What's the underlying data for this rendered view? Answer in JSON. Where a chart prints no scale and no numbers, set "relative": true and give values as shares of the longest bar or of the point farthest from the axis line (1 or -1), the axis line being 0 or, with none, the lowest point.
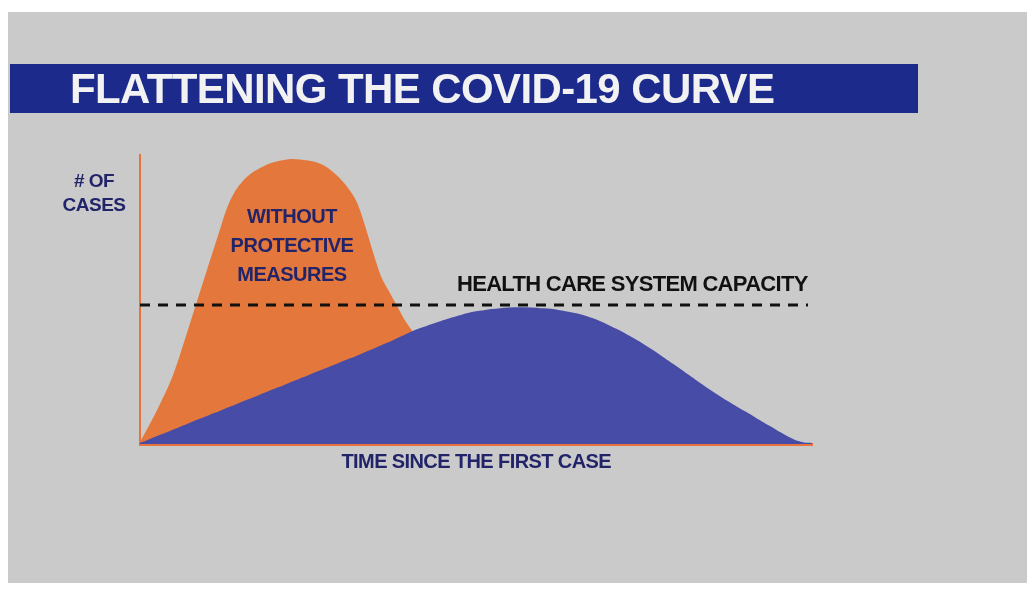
{
  "chart_data": {
    "type": "area",
    "title": "FLATTENING THE COVID-19 CURVE",
    "xlabel": "TIME SINCE THE FIRST CASE",
    "ylabel": "# OF CASES",
    "relative": true,
    "legend": false,
    "marker": "none",
    "categories": [
      null,
      null,
      null,
      null,
      null,
      null,
      null,
      null,
      null,
      null,
      null,
      null,
      null,
      null,
      null,
      null,
      null,
      null,
      null,
      null,
      null,
      null,
      null,
      null,
      null,
      null,
      null,
      null,
      null,
      null,
      null,
      null,
      null,
      null,
      null,
      null,
      null,
      null,
      null,
      null,
      null,
      null,
      null,
      null,
      null,
      null,
      null,
      null,
      null,
      null,
      null,
      null,
      null,
      null,
      null,
      null,
      null,
      null,
      null,
      null,
      null,
      null,
      null,
      null,
      null,
      null,
      null,
      null,
      null,
      null,
      null,
      null,
      null,
      null,
      null,
      null,
      null,
      null,
      null,
      null,
      null,
      null,
      null,
      null,
      null
    ],
    "series": [
      {
        "name": "WITHOUT PROTECTIVE MEASURES",
        "color": "#e4773b",
        "values": [
          0,
          0.051,
          0.104,
          0.162,
          0.224,
          0.303,
          0.391,
          0.48,
          0.569,
          0.657,
          0.745,
          0.831,
          0.889,
          0.926,
          0.951,
          0.968,
          0.982,
          0.991,
          0.997,
          1,
          0.999,
          0.995,
          0.989,
          0.977,
          0.956,
          0.93,
          0.896,
          0.85,
          0.769,
          0.675,
          0.59,
          0.537,
          0.486,
          0.434,
          0.394,
          null,
          null,
          null,
          null,
          null,
          null,
          null,
          null,
          null,
          null,
          null,
          null,
          null,
          null,
          null,
          null,
          null,
          null,
          null,
          null,
          null,
          null,
          null,
          null,
          null,
          null,
          null,
          null,
          null,
          null,
          null,
          null,
          null,
          null,
          null,
          null,
          null,
          null,
          null,
          null,
          null,
          null,
          null,
          null,
          null,
          null,
          null,
          null,
          null,
          null
        ]
      },
      {
        "color": "#474ca6",
        "values": [
          0,
          0.011,
          0.023,
          0.034,
          0.045,
          0.057,
          0.068,
          0.08,
          0.091,
          0.102,
          0.113,
          0.125,
          0.136,
          0.148,
          0.159,
          0.17,
          0.182,
          0.193,
          0.204,
          0.216,
          0.227,
          0.238,
          0.25,
          0.261,
          0.272,
          0.284,
          0.295,
          0.306,
          0.318,
          0.33,
          0.342,
          0.354,
          0.367,
          0.38,
          0.393,
          0.404,
          0.414,
          0.424,
          0.433,
          0.442,
          0.45,
          0.458,
          0.464,
          0.468,
          0.472,
          0.475,
          0.477,
          0.478,
          0.478,
          0.477,
          0.475,
          0.474,
          0.47,
          0.465,
          0.46,
          0.454,
          0.445,
          0.435,
          0.423,
          0.409,
          0.396,
          0.38,
          0.364,
          0.347,
          0.329,
          0.31,
          0.29,
          0.271,
          0.251,
          0.231,
          0.211,
          0.192,
          0.173,
          0.155,
          0.138,
          0.121,
          0.105,
          0.088,
          0.071,
          0.055,
          0.038,
          0.022,
          0.009,
          0.002,
          0
        ]
      }
    ],
    "ref_lines": [
      {
        "axis": "y",
        "value": 0.49,
        "label": "HEALTH CARE SYSTEM CAPACITY",
        "color": "#111111",
        "line_style": "dashed"
      }
    ]
  }
}
